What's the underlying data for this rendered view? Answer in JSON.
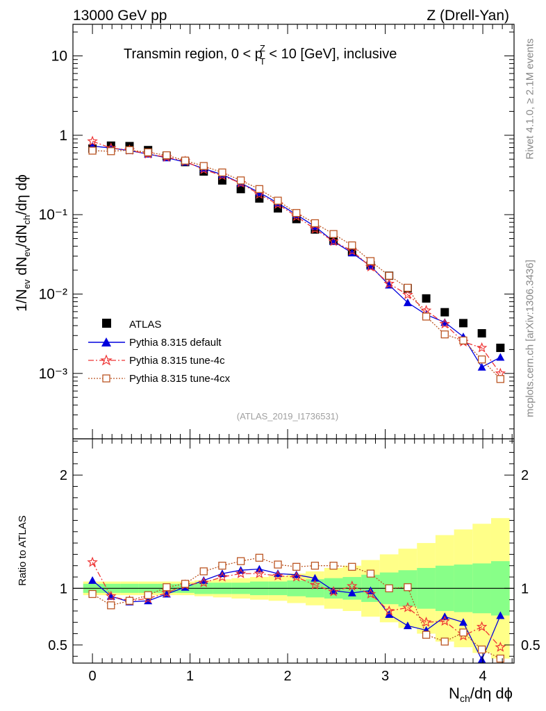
{
  "header": {
    "left": "13000 GeV pp",
    "right": "Z (Drell-Yan)"
  },
  "title": "Transmin region, 0 < p",
  "title_sup": "Z",
  "title_sub": "T",
  "title_tail": " < 10 [GeV], inclusive",
  "analysis_id": "(ATLAS_2019_I1736531)",
  "side_text": {
    "rivet": "Rivet 4.1.0, ≥ 2.1M events",
    "mcplots": "mcplots.cern.ch [arXiv:1306.3436]"
  },
  "colors": {
    "atlas": "#000000",
    "default": "#0000dd",
    "tune4c": "#ee3333",
    "tune4cx": "#bb5522",
    "band_inner": "#88ff88",
    "band_outer": "#ffff88"
  },
  "chart_data": [
    {
      "type": "scatter",
      "id": "main",
      "ylabel": "1/N_ev dN_ev/dN_ch/dη dφ",
      "yscale": "log",
      "ylim": [
        0.00015,
        25
      ],
      "xlim": [
        -0.2,
        4.32
      ],
      "ytick_labels": [
        "10",
        "1",
        "10⁻¹",
        "10⁻²",
        "10⁻³"
      ],
      "x": [
        0,
        0.19,
        0.38,
        0.57,
        0.76,
        0.95,
        1.14,
        1.33,
        1.52,
        1.71,
        1.9,
        2.09,
        2.28,
        2.47,
        2.66,
        2.85,
        3.04,
        3.23,
        3.42,
        3.61,
        3.8,
        3.99,
        4.18
      ],
      "legend": [
        "ATLAS",
        "Pythia 8.315 default",
        "Pythia 8.315 tune-4c",
        "Pythia 8.315 tune-4cx"
      ],
      "series": [
        {
          "name": "ATLAS",
          "values": [
            0.68,
            0.74,
            0.73,
            0.65,
            0.55,
            0.46,
            0.35,
            0.27,
            0.21,
            0.16,
            0.12,
            0.088,
            0.065,
            0.047,
            0.034,
            0.023,
            0.017,
            0.0118,
            0.0088,
            0.0059,
            0.0043,
            0.0032,
            0.0021
          ]
        },
        {
          "name": "Pythia 8.315 default",
          "values": [
            0.73,
            0.69,
            0.64,
            0.58,
            0.52,
            0.46,
            0.38,
            0.32,
            0.25,
            0.19,
            0.14,
            0.1,
            0.071,
            0.046,
            0.033,
            0.0225,
            0.013,
            0.0078,
            0.0055,
            0.0044,
            0.0029,
            0.0012,
            0.0016
          ]
        },
        {
          "name": "Pythia 8.315 tune-4c",
          "values": [
            0.84,
            0.69,
            0.65,
            0.58,
            0.53,
            0.47,
            0.37,
            0.31,
            0.25,
            0.18,
            0.135,
            0.095,
            0.066,
            0.046,
            0.035,
            0.022,
            0.0135,
            0.0098,
            0.0062,
            0.0042,
            0.0025,
            0.0021,
            0.001
          ]
        },
        {
          "name": "Pythia 8.315 tune-4cx",
          "values": [
            0.64,
            0.63,
            0.65,
            0.61,
            0.56,
            0.48,
            0.41,
            0.34,
            0.27,
            0.21,
            0.15,
            0.105,
            0.078,
            0.057,
            0.041,
            0.026,
            0.017,
            0.012,
            0.0052,
            0.0031,
            0.0026,
            0.0015,
            0.00085
          ]
        }
      ]
    },
    {
      "type": "line",
      "id": "ratio",
      "ylabel": "Ratio to ATLAS",
      "xlabel": "N_ch/dη dφ",
      "ylim": [
        0.34,
        2.32
      ],
      "xlim": [
        -0.2,
        4.32
      ],
      "ytick_labels": [
        "0.5",
        "1",
        "2"
      ],
      "xtick_labels": [
        "0",
        "1",
        "2",
        "3",
        "4"
      ],
      "x": [
        0,
        0.19,
        0.38,
        0.57,
        0.76,
        0.95,
        1.14,
        1.33,
        1.52,
        1.71,
        1.9,
        2.09,
        2.28,
        2.47,
        2.66,
        2.85,
        3.04,
        3.23,
        3.42,
        3.61,
        3.8,
        3.99,
        4.18
      ],
      "band_inner_halfwidth": [
        0.04,
        0.04,
        0.04,
        0.04,
        0.04,
        0.04,
        0.05,
        0.05,
        0.05,
        0.06,
        0.06,
        0.07,
        0.08,
        0.09,
        0.1,
        0.12,
        0.14,
        0.16,
        0.18,
        0.2,
        0.21,
        0.22,
        0.24
      ],
      "band_outer_halfwidth": [
        0.06,
        0.06,
        0.06,
        0.06,
        0.06,
        0.06,
        0.07,
        0.08,
        0.09,
        0.1,
        0.11,
        0.13,
        0.15,
        0.18,
        0.2,
        0.25,
        0.3,
        0.35,
        0.4,
        0.47,
        0.52,
        0.57,
        0.62
      ],
      "series": [
        {
          "name": "Pythia 8.315 default",
          "values": [
            1.07,
            0.93,
            0.88,
            0.89,
            0.95,
            1.01,
            1.07,
            1.13,
            1.16,
            1.17,
            1.13,
            1.12,
            1.09,
            0.98,
            0.96,
            0.98,
            0.77,
            0.67,
            0.63,
            0.75,
            0.7,
            0.37,
            0.76
          ]
        },
        {
          "name": "Pythia 8.315 tune-4c",
          "values": [
            1.23,
            0.93,
            0.89,
            0.91,
            0.96,
            1.03,
            1.05,
            1.1,
            1.13,
            1.13,
            1.11,
            1.1,
            1.03,
            0.97,
            1.02,
            0.95,
            0.8,
            0.83,
            0.7,
            0.71,
            0.58,
            0.66,
            0.48
          ]
        },
        {
          "name": "Pythia 8.315 tune-4cx",
          "values": [
            0.95,
            0.85,
            0.89,
            0.94,
            1.01,
            1.04,
            1.15,
            1.2,
            1.24,
            1.27,
            1.21,
            1.19,
            1.2,
            1.2,
            1.19,
            1.13,
            1.0,
            1.01,
            0.59,
            0.53,
            0.61,
            0.46,
            0.38
          ]
        }
      ]
    }
  ]
}
